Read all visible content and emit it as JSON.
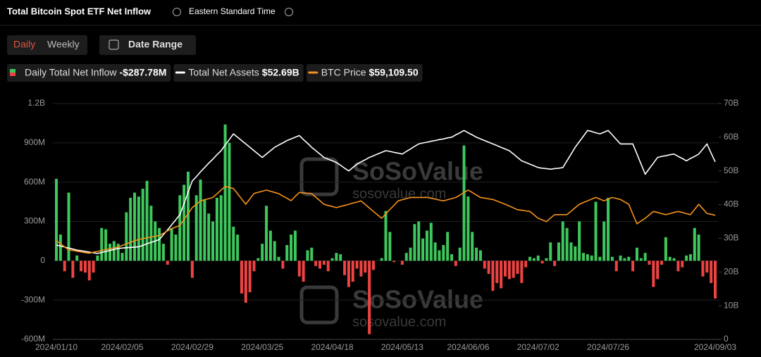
{
  "header": {
    "title": "Total Bitcoin Spot ETF Net Inflow",
    "timezone": "Eastern Standard Time",
    "toggles": [
      "Daily",
      "Weekly"
    ],
    "date_range": "Date Range"
  },
  "watermark": {
    "brand": "SoSoValue",
    "site": "sosovalue.com"
  },
  "chart_data": {
    "type": "bar",
    "categories": [
      "2024/01/10",
      null,
      null,
      null,
      null,
      null,
      null,
      null,
      null,
      null,
      null,
      null,
      null,
      null,
      null,
      null,
      "2024/02/05",
      null,
      null,
      null,
      null,
      null,
      null,
      null,
      null,
      null,
      null,
      null,
      null,
      null,
      null,
      null,
      null,
      "2024/02/29",
      null,
      null,
      null,
      null,
      null,
      null,
      null,
      null,
      null,
      null,
      null,
      null,
      null,
      null,
      null,
      null,
      "2024/03/25",
      null,
      null,
      null,
      null,
      null,
      null,
      null,
      null,
      null,
      null,
      null,
      null,
      null,
      null,
      null,
      null,
      "2024/04/18",
      null,
      null,
      null,
      null,
      null,
      null,
      null,
      null,
      null,
      null,
      null,
      null,
      null,
      null,
      null,
      null,
      "2024/05/13",
      null,
      null,
      null,
      null,
      null,
      null,
      null,
      null,
      null,
      null,
      null,
      null,
      null,
      null,
      null,
      "2024/06/06",
      null,
      null,
      null,
      null,
      null,
      null,
      null,
      null,
      null,
      null,
      null,
      null,
      null,
      null,
      null,
      null,
      "2024/07/02",
      null,
      null,
      null,
      null,
      null,
      null,
      null,
      null,
      null,
      null,
      null,
      null,
      null,
      null,
      null,
      null,
      "2024/07/26",
      null,
      null,
      null,
      null,
      null,
      null,
      null,
      null,
      null,
      null,
      null,
      null,
      null,
      null,
      null,
      null,
      null,
      null,
      null,
      null,
      null,
      null,
      null,
      null,
      null,
      "2024/09/03"
    ],
    "series": [
      {
        "name": "Daily Total Net Inflow",
        "latest_label": "-$287.78M",
        "colors": {
          "positive": "#3ec75c",
          "negative": "#ef4343"
        },
        "axis": "y",
        "values": [
          625,
          200,
          -80,
          520,
          -130,
          40,
          -80,
          -90,
          -150,
          -90,
          40,
          250,
          240,
          130,
          150,
          130,
          60,
          370,
          480,
          520,
          490,
          550,
          610,
          420,
          300,
          250,
          130,
          -30,
          250,
          200,
          500,
          580,
          680,
          -130,
          500,
          620,
          470,
          360,
          300,
          480,
          500,
          1040,
          900,
          260,
          200,
          -250,
          -320,
          -240,
          -80,
          20,
          130,
          420,
          230,
          150,
          30,
          -60,
          120,
          200,
          230,
          -120,
          -160,
          80,
          100,
          -40,
          -60,
          -30,
          -80,
          20,
          60,
          50,
          -110,
          -200,
          -160,
          -60,
          -120,
          -90,
          -560,
          -70,
          0,
          20,
          380,
          220,
          -10,
          0,
          -30,
          60,
          100,
          280,
          300,
          170,
          230,
          290,
          140,
          80,
          120,
          220,
          50,
          -40,
          100,
          880,
          490,
          220,
          100,
          80,
          -60,
          -100,
          -230,
          -170,
          -210,
          -120,
          -140,
          -130,
          -100,
          -170,
          -50,
          30,
          20,
          40,
          -20,
          20,
          140,
          -40,
          140,
          300,
          250,
          140,
          110,
          300,
          60,
          50,
          40,
          450,
          30,
          300,
          480,
          30,
          -80,
          40,
          20,
          30,
          -80,
          100,
          20,
          60,
          -30,
          -200,
          -140,
          -30,
          180,
          30,
          20,
          -80,
          -50,
          40,
          50,
          250,
          200,
          -120,
          -90,
          -170,
          -287.78
        ]
      },
      {
        "name": "Total Net Assets",
        "latest_label": "$52.69B",
        "color": "#ffffff",
        "axis": "y2",
        "values": [
          28,
          27.7,
          27.4,
          27.1,
          26.8,
          26.5,
          26.3,
          26.1,
          25.9,
          25.7,
          25.5,
          25.8,
          26.1,
          26.4,
          26.7,
          27,
          27.1,
          27.2,
          27.3,
          27.4,
          27.5,
          27.9,
          28.4,
          28.8,
          29.2,
          29.6,
          31.1,
          32.5,
          34,
          35.5,
          37,
          40.3,
          43.7,
          47,
          48.3,
          49.7,
          51,
          52.3,
          53.5,
          54.8,
          56,
          57.7,
          59.3,
          61,
          60,
          59,
          58,
          57,
          56,
          55,
          54,
          55,
          56,
          57,
          57.7,
          58.3,
          59,
          59.5,
          60,
          60.5,
          59.3,
          58.2,
          57,
          56,
          55,
          54,
          53.5,
          53,
          52.5,
          51.7,
          50.8,
          50,
          51,
          52,
          52.7,
          53.3,
          54,
          54.5,
          55,
          55.5,
          56,
          55.8,
          55.5,
          55.3,
          55,
          55.8,
          56.5,
          57.3,
          58,
          58.3,
          58.5,
          58.8,
          59,
          59.3,
          59.5,
          59.8,
          60,
          60.7,
          61.3,
          62,
          61.3,
          60.7,
          60,
          59.5,
          59,
          58.5,
          58,
          57.5,
          57,
          56.5,
          56,
          55,
          54,
          53,
          52.5,
          52,
          51.5,
          51,
          50.8,
          50.7,
          50.5,
          50.7,
          50.8,
          51,
          53,
          55,
          57,
          58.7,
          60.3,
          62,
          61.7,
          61.3,
          61,
          61.5,
          62,
          60.7,
          59.3,
          58,
          58,
          58,
          58,
          55,
          52,
          49,
          50.7,
          52.3,
          54,
          54.3,
          54.5,
          54.8,
          55,
          54.3,
          53.7,
          53,
          53.7,
          54.3,
          55,
          56.5,
          58,
          55.3,
          52.69
        ]
      },
      {
        "name": "BTC Price",
        "latest_label": "$59,109.50",
        "color": "#f7931a",
        "axis": "y3",
        "values": [
          46300,
          44800,
          43300,
          41800,
          41500,
          41100,
          40800,
          40400,
          40100,
          40600,
          41000,
          41500,
          41900,
          42400,
          42800,
          43300,
          44000,
          44800,
          45500,
          46300,
          47000,
          47400,
          47800,
          48200,
          48600,
          49000,
          50100,
          51300,
          52400,
          53200,
          54000,
          57000,
          59900,
          62900,
          64600,
          66300,
          66900,
          67400,
          68000,
          69800,
          71700,
          73500,
          73000,
          72500,
          69900,
          67200,
          64600,
          67300,
          70000,
          70600,
          71100,
          71700,
          71100,
          70500,
          69900,
          68700,
          67600,
          66400,
          68500,
          70500,
          70300,
          70100,
          69900,
          68100,
          66400,
          64600,
          64000,
          63500,
          62900,
          63500,
          64000,
          64600,
          65200,
          65700,
          66300,
          64500,
          62800,
          61000,
          59300,
          57600,
          59800,
          62000,
          64100,
          66300,
          66900,
          67400,
          68000,
          68000,
          68000,
          68000,
          68000,
          67600,
          67200,
          66700,
          66300,
          66900,
          67400,
          68000,
          69200,
          70500,
          71700,
          70500,
          69200,
          68000,
          67700,
          67300,
          67000,
          66200,
          65400,
          64600,
          63700,
          62800,
          61900,
          61600,
          61300,
          61000,
          59300,
          57600,
          56800,
          55900,
          57700,
          59400,
          59400,
          59400,
          59400,
          61100,
          62900,
          64600,
          65500,
          66300,
          67200,
          68000,
          67200,
          66300,
          67200,
          68000,
          67500,
          67000,
          65800,
          64600,
          59700,
          54800,
          56200,
          57600,
          59300,
          61000,
          60500,
          59900,
          59400,
          59900,
          60500,
          61000,
          60500,
          59900,
          59400,
          62000,
          64600,
          62300,
          60000,
          59600,
          59109.5
        ]
      }
    ],
    "ylim": [
      -600,
      1200
    ],
    "yticks": [
      {
        "value": 1200,
        "label": "1.2B"
      },
      {
        "value": 900,
        "label": "900M"
      },
      {
        "value": 600,
        "label": "600M"
      },
      {
        "value": 300,
        "label": "300M"
      },
      0,
      {
        "value": -300,
        "label": "-300M"
      },
      {
        "value": -600,
        "label": "-600M"
      }
    ],
    "y2lim": [
      0,
      70
    ],
    "y2ticks": [
      0,
      {
        "value": 10,
        "label": "10B"
      },
      {
        "value": 20,
        "label": "20B"
      },
      {
        "value": 30,
        "label": "30B"
      },
      {
        "value": 40,
        "label": "40B"
      },
      {
        "value": 50,
        "label": "50B"
      },
      {
        "value": 60,
        "label": "60B"
      },
      {
        "value": 70,
        "label": "70B"
      }
    ],
    "y3lim": [
      -3000,
      115000
    ],
    "grid": true
  }
}
